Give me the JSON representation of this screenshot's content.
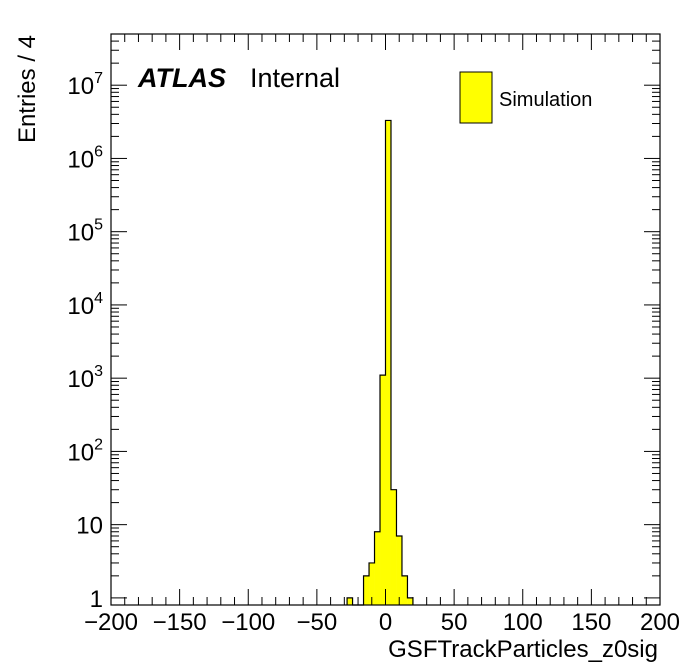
{
  "chart_data": {
    "type": "bar",
    "histogram": true,
    "xlabel": "GSFTrackParticles_z0sig",
    "ylabel": "Entries / 4",
    "bin_width": 4,
    "xlim": [
      -200,
      200
    ],
    "ylim": [
      0.8,
      50000000
    ],
    "y_scale": "log",
    "grid": false,
    "fill_color": "#ffff00",
    "edge_color": "#000000",
    "x_ticks": [
      -200,
      -150,
      -100,
      -50,
      0,
      50,
      100,
      150,
      200
    ],
    "x_tick_labels": [
      "−200",
      "−150",
      "−100",
      "−50",
      "0",
      "50",
      "100",
      "150",
      "200"
    ],
    "y_ticks": [
      {
        "value": 1,
        "base": "1",
        "exp": ""
      },
      {
        "value": 10,
        "base": "10",
        "exp": ""
      },
      {
        "value": 100,
        "base": "10",
        "exp": "2"
      },
      {
        "value": 1000,
        "base": "10",
        "exp": "3"
      },
      {
        "value": 10000,
        "base": "10",
        "exp": "4"
      },
      {
        "value": 100000,
        "base": "10",
        "exp": "5"
      },
      {
        "value": 1000000,
        "base": "10",
        "exp": "6"
      },
      {
        "value": 10000000,
        "base": "10",
        "exp": "7"
      }
    ],
    "bins": [
      {
        "low": -28,
        "high": -24,
        "value": 1
      },
      {
        "low": -24,
        "high": -20,
        "value": 0
      },
      {
        "low": -20,
        "high": -16,
        "value": 0
      },
      {
        "low": -16,
        "high": -12,
        "value": 2
      },
      {
        "low": -12,
        "high": -8,
        "value": 3
      },
      {
        "low": -8,
        "high": -4,
        "value": 8
      },
      {
        "low": -4,
        "high": 0,
        "value": 1100
      },
      {
        "low": 0,
        "high": 4,
        "value": 3300000
      },
      {
        "low": 4,
        "high": 8,
        "value": 30
      },
      {
        "low": 8,
        "high": 12,
        "value": 7
      },
      {
        "low": 12,
        "high": 16,
        "value": 2
      },
      {
        "low": 16,
        "high": 20,
        "value": 1
      }
    ],
    "annotations": {
      "experiment": "ATLAS",
      "status": "Internal"
    },
    "legend": {
      "position": "top-right",
      "entries": [
        {
          "label": "Simulation",
          "color": "#ffff00"
        }
      ]
    }
  }
}
